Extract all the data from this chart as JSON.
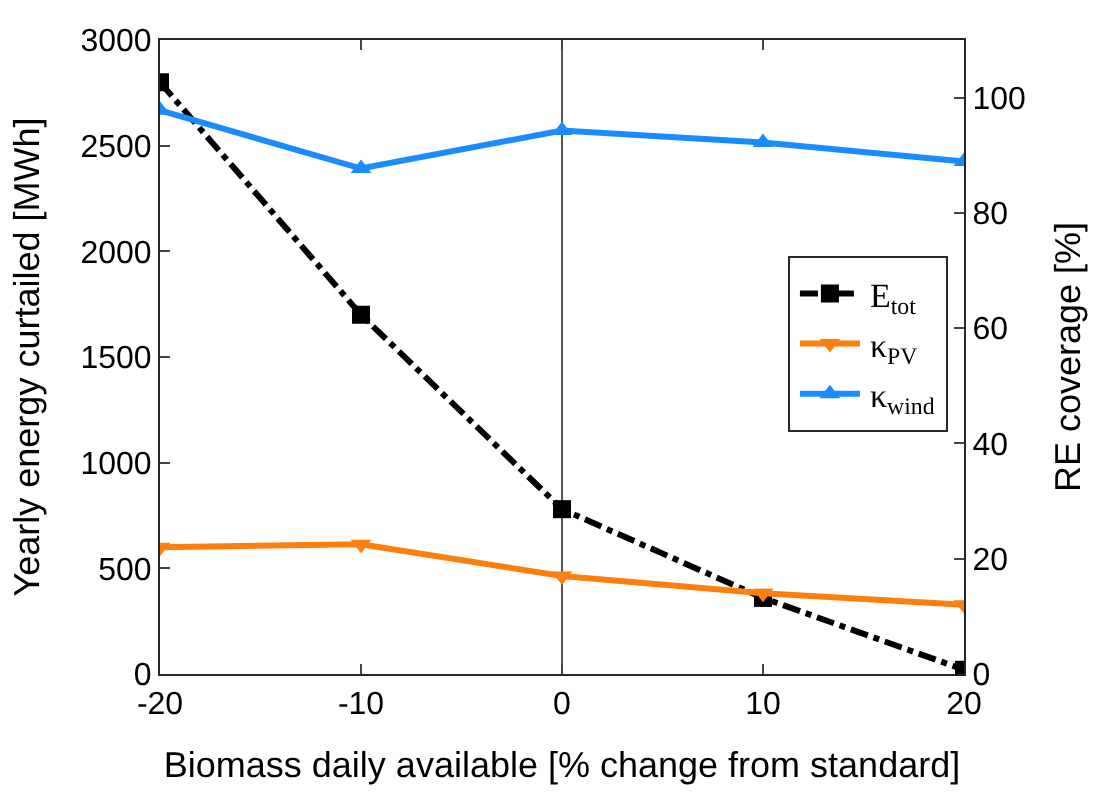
{
  "chart_data": {
    "type": "line",
    "xlabel": "Biomass daily available [% change from standard]",
    "ylabel": "Yearly energy curtailed [MWh]",
    "y2label": "RE coverage [%]",
    "x": [
      -20,
      -10,
      0,
      10,
      20
    ],
    "xlim": [
      -20,
      20
    ],
    "xticks": [
      -20,
      -10,
      0,
      10,
      20
    ],
    "ylim": [
      0,
      3000
    ],
    "yticks": [
      0,
      500,
      1000,
      1500,
      2000,
      2500,
      3000
    ],
    "y2lim": [
      0,
      110
    ],
    "y2ticks": [
      0,
      20,
      40,
      60,
      80,
      100
    ],
    "series": [
      {
        "name": "E$_{tot}$",
        "color": "#000000",
        "values": [
          2800,
          1700,
          780,
          360,
          20
        ],
        "marker": "square",
        "line_style": "dashed"
      },
      {
        "name": "κ$_{PV}$",
        "color": "#ff7f0e",
        "values": [
          22,
          22.5,
          17,
          14,
          12
        ],
        "marker": "triangle-down",
        "axis": "y2",
        "line_style": "solid"
      },
      {
        "name": "κ$_{wind}$",
        "color": "#1a8cff",
        "values": [
          97.8,
          87.7,
          94.3,
          92.2,
          88.9
        ],
        "marker": "triangle",
        "axis": "y2",
        "line_style": "solid"
      }
    ],
    "ref_lines": [
      {
        "axis": "x",
        "value": 0,
        "color": "#555555"
      }
    ],
    "grid": false,
    "legend": "right"
  }
}
